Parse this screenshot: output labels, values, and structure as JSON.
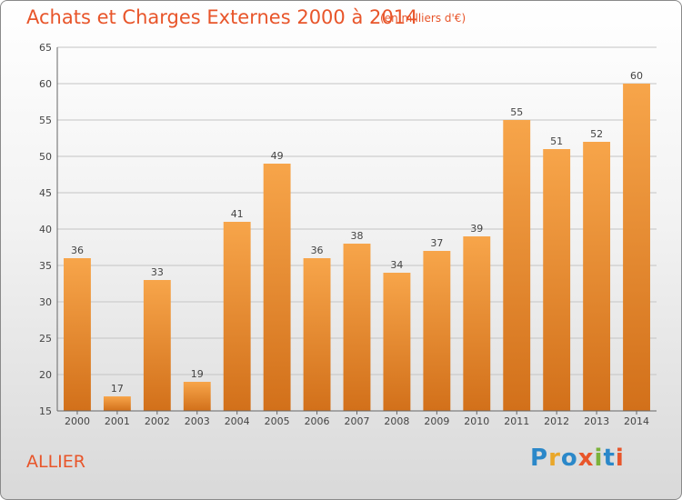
{
  "header": {
    "title": "Achats et Charges Externes 2000 à 2014",
    "subtitle": "(en milliers d'€)"
  },
  "footer": {
    "region": "ALLIER",
    "logo": "Proxiti"
  },
  "colors": {
    "bar_light": "#f7a54a",
    "bar_dark": "#d2701a",
    "title": "#e8552a",
    "grid": "#bfbfbf"
  },
  "chart_data": {
    "type": "bar",
    "title": "Achats et Charges Externes 2000 à 2014",
    "subtitle": "(en milliers d'€)",
    "xlabel": "",
    "ylabel": "",
    "ylim": [
      15,
      65
    ],
    "yticks": [
      15,
      20,
      25,
      30,
      35,
      40,
      45,
      50,
      55,
      60,
      65
    ],
    "grid": true,
    "categories": [
      "2000",
      "2001",
      "2002",
      "2003",
      "2004",
      "2005",
      "2006",
      "2007",
      "2008",
      "2009",
      "2010",
      "2011",
      "2012",
      "2013",
      "2014"
    ],
    "values": [
      36,
      17,
      33,
      19,
      41,
      49,
      36,
      38,
      34,
      37,
      39,
      55,
      51,
      52,
      60
    ]
  }
}
